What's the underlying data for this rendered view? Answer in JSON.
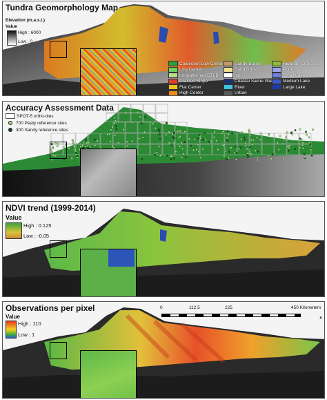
{
  "panels": {
    "p1": {
      "title": "Tundra Geomorphology Map",
      "elevation_title": "Elevation (m.a.s.l.)",
      "value_label": "Value",
      "high": "High : 6000",
      "low": "Low : 0",
      "legend": [
        {
          "label": "Coalecent Low Center",
          "color": "#2f9c3c"
        },
        {
          "label": "Low Center",
          "color": "#6fcf5e"
        },
        {
          "label": "nonpatterned DTLB",
          "color": "#b5e08c"
        },
        {
          "label": "Drained Slope",
          "color": "#e0402a"
        },
        {
          "label": "Flat Center",
          "color": "#f2c318"
        },
        {
          "label": "High Center",
          "color": "#f08a1c"
        },
        {
          "label": "Sandy Barren",
          "color": "#c79a6a"
        },
        {
          "label": "Sand Dune",
          "color": "#f2e08e"
        },
        {
          "label": "Ice",
          "color": "#ffffff"
        },
        {
          "label": "Coastal Saline Water",
          "color": "#1d2f6e"
        },
        {
          "label": "River",
          "color": "#3ec2e0"
        },
        {
          "label": "Urban",
          "color": "#5a5a5a"
        },
        {
          "label": "Riparian Corridors",
          "color": "#8fbf3a"
        },
        {
          "label": "Pond",
          "color": "#9aa6e6"
        },
        {
          "label": "Small Lake",
          "color": "#6e80dc"
        },
        {
          "label": "Medium Lake",
          "color": "#3e58c8"
        },
        {
          "label": "Large Lake",
          "color": "#1e3aa8"
        }
      ]
    },
    "p2": {
      "title": "Accuracy Assessment Data",
      "legend": [
        {
          "label": "SPOT-5 ortho-tiles",
          "symbol": "square-outline"
        },
        {
          "label": "700 Peaty reference sites",
          "symbol": "dot-green"
        },
        {
          "label": "300 Sandy reference sites",
          "symbol": "dot-dark"
        }
      ]
    },
    "p3": {
      "title": "NDVI trend (1999-2014)",
      "value_label": "Value",
      "high": "High : 0.125",
      "low": "Low : -0.05"
    },
    "p4": {
      "title": "Observations per pixel",
      "value_label": "Value",
      "high": "High : 110",
      "low": "Low : 1",
      "scale_ticks": [
        "0",
        "112.5",
        "225",
        "450 Kilometers"
      ]
    }
  },
  "colors": {
    "terrain_dark": "#222222",
    "terrain_light": "#e8e8e8",
    "lake_blue": "#3355cc",
    "ndvi_green": "#4caf50",
    "ndvi_yellow": "#d4c030",
    "obs_red": "#e53920",
    "obs_yellow": "#f2d21e",
    "obs_green": "#3fae3a"
  },
  "icons": [
    "north-arrow-icon",
    "scale-bar-icon"
  ]
}
